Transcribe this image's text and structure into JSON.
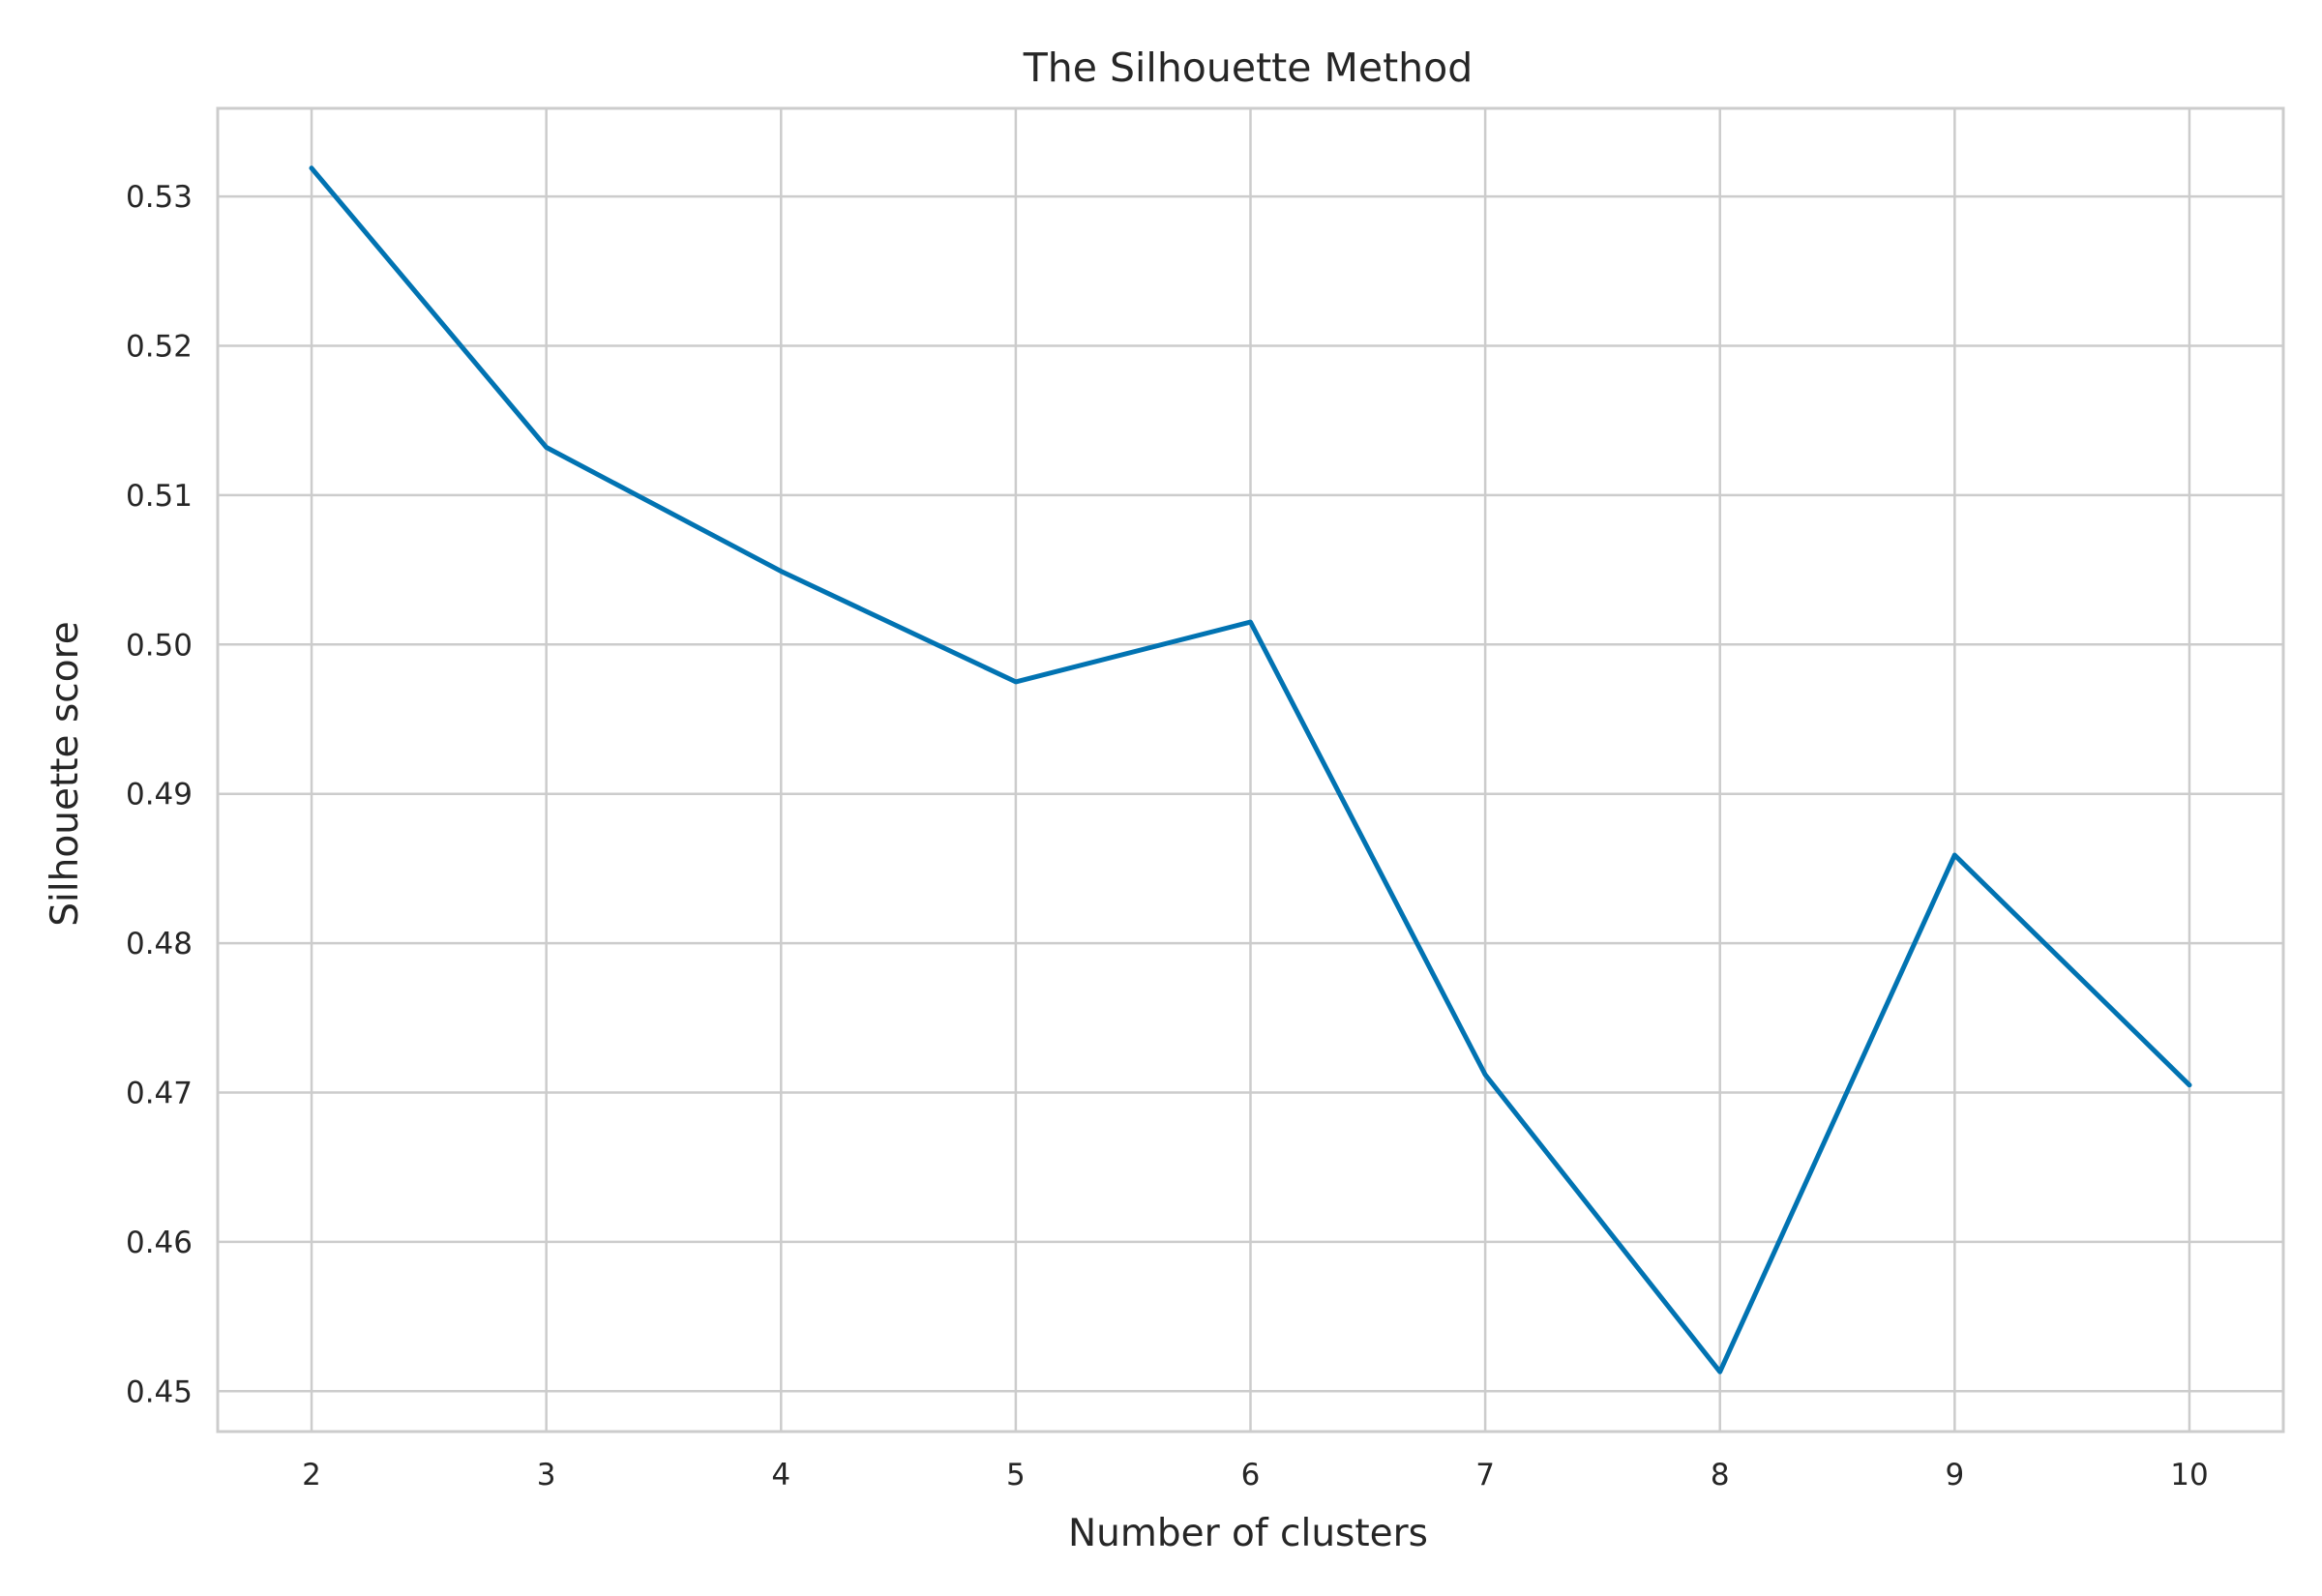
{
  "chart_data": {
    "type": "line",
    "title": "The Silhouette Method",
    "xlabel": "Number of clusters",
    "ylabel": "Silhouette score",
    "x": [
      2,
      3,
      4,
      5,
      6,
      7,
      8,
      9,
      10
    ],
    "series": [
      {
        "values": [
          0.5319,
          0.5132,
          0.5049,
          0.4975,
          0.5015,
          0.4712,
          0.4513,
          0.4859,
          0.4705
        ]
      }
    ],
    "xticks": [
      2,
      3,
      4,
      5,
      6,
      7,
      8,
      9,
      10
    ],
    "yticks": [
      "0.45",
      "0.46",
      "0.47",
      "0.48",
      "0.49",
      "0.50",
      "0.51",
      "0.52",
      "0.53"
    ],
    "xlim": [
      1.6,
      10.4
    ],
    "ylim": [
      0.4473,
      0.5359
    ],
    "grid": true,
    "line_color": "#0173b2",
    "grid_color": "#cccccc"
  }
}
